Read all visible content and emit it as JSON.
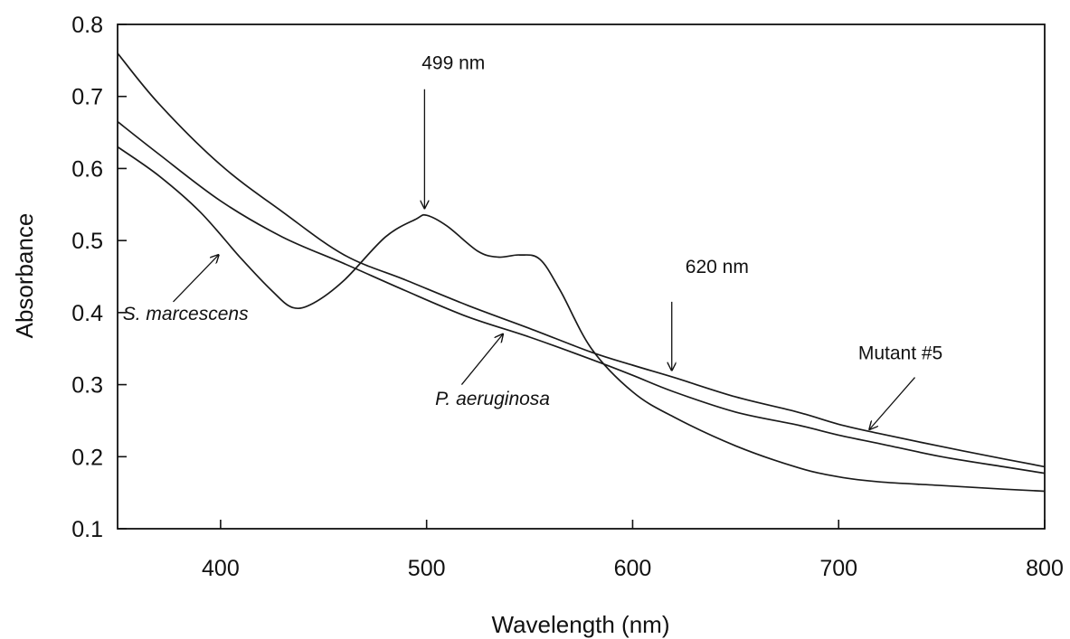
{
  "chart_data": {
    "type": "line",
    "title": "",
    "xlabel": "Wavelength (nm)",
    "ylabel": "Absorbance",
    "xlim": [
      350,
      800
    ],
    "ylim": [
      0.1,
      0.8
    ],
    "xticks": [
      400,
      500,
      600,
      700,
      800
    ],
    "yticks": [
      0.1,
      0.2,
      0.3,
      0.4,
      0.5,
      0.6,
      0.7,
      0.8
    ],
    "xtick_labels": [
      "400",
      "500",
      "600",
      "700",
      "800"
    ],
    "ytick_labels": [
      "0.1",
      "0.2",
      "0.3",
      "0.4",
      "0.5",
      "0.6",
      "0.7",
      "0.8"
    ],
    "grid": false,
    "legend": "none",
    "series": [
      {
        "name": "S. marcescens",
        "x": [
          350,
          370,
          390,
          410,
          425,
          435,
          445,
          460,
          480,
          495,
          500,
          510,
          525,
          535,
          545,
          555,
          565,
          580,
          600,
          620,
          650,
          680,
          700,
          720,
          750,
          780,
          800
        ],
        "y": [
          0.63,
          0.59,
          0.54,
          0.475,
          0.43,
          0.407,
          0.413,
          0.445,
          0.505,
          0.53,
          0.535,
          0.52,
          0.485,
          0.477,
          0.48,
          0.474,
          0.43,
          0.35,
          0.29,
          0.255,
          0.215,
          0.185,
          0.172,
          0.165,
          0.16,
          0.155,
          0.152
        ]
      },
      {
        "name": "P. aeruginosa",
        "x": [
          350,
          370,
          400,
          430,
          460,
          490,
          520,
          550,
          580,
          600,
          620,
          650,
          680,
          700,
          720,
          750,
          780,
          800
        ],
        "y": [
          0.665,
          0.62,
          0.555,
          0.505,
          0.468,
          0.43,
          0.394,
          0.366,
          0.335,
          0.313,
          0.29,
          0.262,
          0.244,
          0.23,
          0.218,
          0.2,
          0.186,
          0.177
        ]
      },
      {
        "name": "Mutant #5",
        "x": [
          350,
          370,
          400,
          430,
          460,
          490,
          520,
          550,
          580,
          600,
          620,
          650,
          680,
          700,
          720,
          750,
          780,
          800
        ],
        "y": [
          0.76,
          0.69,
          0.605,
          0.54,
          0.48,
          0.445,
          0.41,
          0.378,
          0.345,
          0.327,
          0.31,
          0.283,
          0.262,
          0.245,
          0.232,
          0.214,
          0.197,
          0.186
        ]
      }
    ],
    "annotations": [
      {
        "text": "499 nm",
        "style": "normal",
        "label_at": [
          513,
          0.738
        ],
        "arrow_from": [
          499,
          0.71
        ],
        "arrow_to": [
          499,
          0.545
        ]
      },
      {
        "text": "620 nm",
        "style": "normal",
        "label_at": [
          641,
          0.455
        ],
        "arrow_from": [
          619,
          0.415
        ],
        "arrow_to": [
          619,
          0.32
        ]
      },
      {
        "text": "S. marcescens",
        "style": "italic",
        "label_at": [
          383,
          0.39
        ],
        "arrow_from": [
          377,
          0.415
        ],
        "arrow_to": [
          399,
          0.48
        ]
      },
      {
        "text": "P. aeruginosa",
        "style": "italic",
        "label_at": [
          532,
          0.272
        ],
        "arrow_from": [
          517,
          0.3
        ],
        "arrow_to": [
          537,
          0.37
        ]
      },
      {
        "text": "Mutant #5",
        "style": "normal",
        "label_at": [
          730,
          0.335
        ],
        "arrow_from": [
          737,
          0.31
        ],
        "arrow_to": [
          715,
          0.238
        ]
      }
    ]
  }
}
